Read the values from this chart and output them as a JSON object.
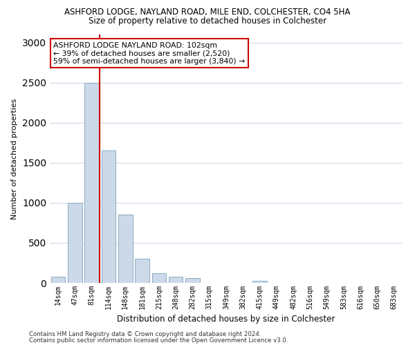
{
  "title_line1": "ASHFORD LODGE, NAYLAND ROAD, MILE END, COLCHESTER, CO4 5HA",
  "title_line2": "Size of property relative to detached houses in Colchester",
  "xlabel": "Distribution of detached houses by size in Colchester",
  "ylabel": "Number of detached properties",
  "categories": [
    "14sqm",
    "47sqm",
    "81sqm",
    "114sqm",
    "148sqm",
    "181sqm",
    "215sqm",
    "248sqm",
    "282sqm",
    "315sqm",
    "349sqm",
    "382sqm",
    "415sqm",
    "449sqm",
    "482sqm",
    "516sqm",
    "549sqm",
    "583sqm",
    "616sqm",
    "650sqm",
    "683sqm"
  ],
  "values": [
    75,
    1000,
    2500,
    1650,
    850,
    300,
    120,
    75,
    60,
    0,
    0,
    0,
    30,
    0,
    0,
    0,
    0,
    0,
    0,
    0,
    0
  ],
  "bar_color": "#ccd9e8",
  "bar_edge_color": "#8aaabf",
  "vline_pos": 2.48,
  "vline_color": "#cc0000",
  "annotation_text": "ASHFORD LODGE NAYLAND ROAD: 102sqm\n← 39% of detached houses are smaller (2,520)\n59% of semi-detached houses are larger (3,840) →",
  "annotation_box_color": "white",
  "annotation_box_edge": "#cc0000",
  "ylim": [
    0,
    3100
  ],
  "yticks": [
    0,
    500,
    1000,
    1500,
    2000,
    2500,
    3000
  ],
  "grid_color": "#d0d8e8",
  "background_color": "white",
  "footnote_line1": "Contains HM Land Registry data © Crown copyright and database right 2024.",
  "footnote_line2": "Contains public sector information licensed under the Open Government Licence v3.0."
}
